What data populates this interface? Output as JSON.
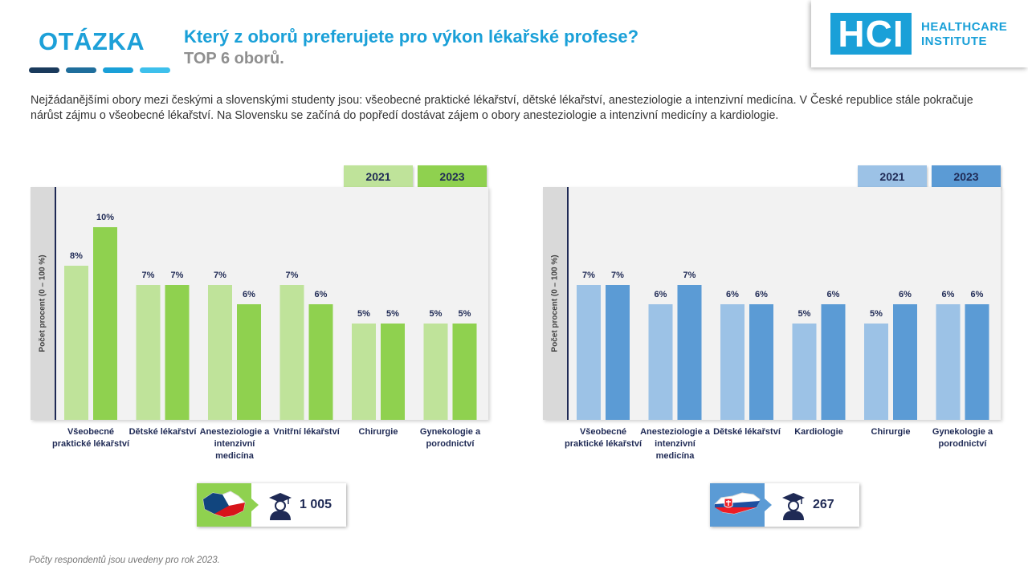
{
  "header": {
    "badge": "OTÁZKA",
    "title": "Který z oborů preferujete pro výkon lékařské profese?",
    "subtitle": "TOP 6 oborů."
  },
  "logo": {
    "mark": "HCI",
    "line1": "HEALTHCARE",
    "line2": "INSTITUTE"
  },
  "intro": "Nejžádanějšími obory mezi českými a slovenskými studenty jsou: všeobecné praktické lékařství, dětské lékařství, anesteziologie a intenzivní medicína. V České republice stále pokračuje nárůst zájmu o všeobecné lékařství. Na Slovensku se začíná do popředí dostávat zájem o obory anesteziologie a intenzivní medicíny a kardiologie.",
  "footnote": "Počty respondentů jsou uvedeny pro rok 2023.",
  "colors": {
    "cz_2021": "#bfe39a",
    "cz_2023": "#8fd14f",
    "sk_2021": "#9cc2e6",
    "sk_2023": "#5b9bd5",
    "title_blue": "#1aa0d8",
    "navy": "#1f2a55"
  },
  "charts": {
    "cz": {
      "respondents": "1 005",
      "country_icon": "czech-flag-map-icon"
    },
    "sk": {
      "respondents": "267",
      "country_icon": "slovak-flag-map-icon"
    }
  },
  "chart_data": [
    {
      "type": "bar",
      "ylabel": "Počet procent (0 – 100 %)",
      "ylim": [
        0,
        12
      ],
      "categories": [
        "Všeobecné praktické lékařství",
        "Dětské lékařství",
        "Anesteziologie a intenzivní medicína",
        "Vnitřní lékařství",
        "Chirurgie",
        "Gynekologie a porodnictví"
      ],
      "series": [
        {
          "name": "2021",
          "values": [
            8,
            7,
            7,
            7,
            5,
            5
          ],
          "labels": [
            "8%",
            "7%",
            "7%",
            "7%",
            "5%",
            "5%"
          ]
        },
        {
          "name": "2023",
          "values": [
            10,
            7,
            6,
            6,
            5,
            5
          ],
          "labels": [
            "10%",
            "7%",
            "6%",
            "6%",
            "5%",
            "5%"
          ]
        }
      ]
    },
    {
      "type": "bar",
      "ylabel": "Počet procent (0 – 100 %)",
      "ylim": [
        0,
        12
      ],
      "categories": [
        "Všeobecné praktické lékařství",
        "Anesteziologie a intenzivní medicína",
        "Dětské lékařství",
        "Kardiologie",
        "Chirurgie",
        "Gynekologie a porodnictví"
      ],
      "series": [
        {
          "name": "2021",
          "values": [
            7,
            6,
            6,
            5,
            5,
            6
          ],
          "labels": [
            "7%",
            "6%",
            "6%",
            "5%",
            "5%",
            "6%"
          ]
        },
        {
          "name": "2023",
          "values": [
            7,
            7,
            6,
            6,
            6,
            6
          ],
          "labels": [
            "7%",
            "7%",
            "6%",
            "6%",
            "6%",
            "6%"
          ]
        }
      ]
    }
  ]
}
